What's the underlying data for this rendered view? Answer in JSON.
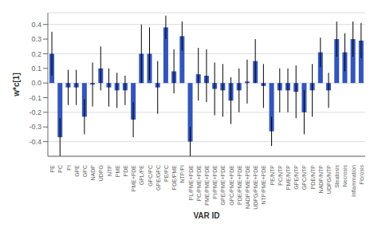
{
  "chart_data": {
    "type": "bar",
    "xlabel": "VAR ID",
    "ylabel": "w*c[1]",
    "categories": [
      "PE",
      "PC",
      "PI",
      "GPE",
      "GPC",
      "NADP",
      "UDPG",
      "NTP",
      "PME",
      "PDE",
      "PME+FDE",
      "GPL/PE",
      "GPC/PC",
      "GPE/GPC",
      "PE/PC",
      "PDE/PME",
      "NTP/PI",
      "PL/PME+PDE",
      "PC/PME+PDE",
      "PME/PME+PDE",
      "PI/PME+PDE",
      "GPE/PME+PDE",
      "GPC/PME+PDE",
      "PDE/PME+PDE",
      "NADP/PME+PDE",
      "UDPG/PME+PDE",
      "NTP/PME+PDE",
      "PE/NTP",
      "PC/NTP",
      "PME/NTP",
      "GPE/NTP",
      "GPC/NTP",
      "PDE/NTP",
      "NADP/NTP",
      "UDPG/NTP",
      "Steatosis",
      "Necrosis",
      "Inflammation",
      "Fibrosis"
    ],
    "values": [
      0.2,
      -0.37,
      -0.03,
      -0.03,
      -0.23,
      -0.01,
      0.1,
      -0.03,
      -0.05,
      -0.05,
      -0.25,
      0.2,
      0.2,
      -0.03,
      0.38,
      0.08,
      0.32,
      -0.4,
      0.06,
      0.05,
      -0.04,
      -0.05,
      -0.12,
      -0.05,
      0.01,
      0.15,
      -0.02,
      -0.33,
      -0.05,
      -0.05,
      -0.06,
      -0.2,
      -0.05,
      0.21,
      -0.05,
      0.3,
      0.21,
      0.3,
      0.29
    ],
    "errors": [
      0.15,
      0.13,
      0.12,
      0.12,
      0.12,
      0.15,
      0.15,
      0.13,
      0.12,
      0.1,
      0.12,
      0.2,
      0.18,
      0.18,
      0.08,
      0.15,
      0.1,
      0.1,
      0.18,
      0.18,
      0.18,
      0.18,
      0.16,
      0.15,
      0.15,
      0.15,
      0.15,
      0.1,
      0.15,
      0.15,
      0.18,
      0.15,
      0.18,
      0.1,
      0.12,
      0.12,
      0.13,
      0.12,
      0.12
    ],
    "color": "#3355bb",
    "ylim": [
      -0.5,
      0.48
    ],
    "yticks": [
      -0.4,
      -0.3,
      -0.2,
      -0.1,
      {
        "value": 0.0,
        "label": "0.0"
      },
      0.1,
      0.2,
      0.3,
      0.4
    ],
    "grid": true
  }
}
